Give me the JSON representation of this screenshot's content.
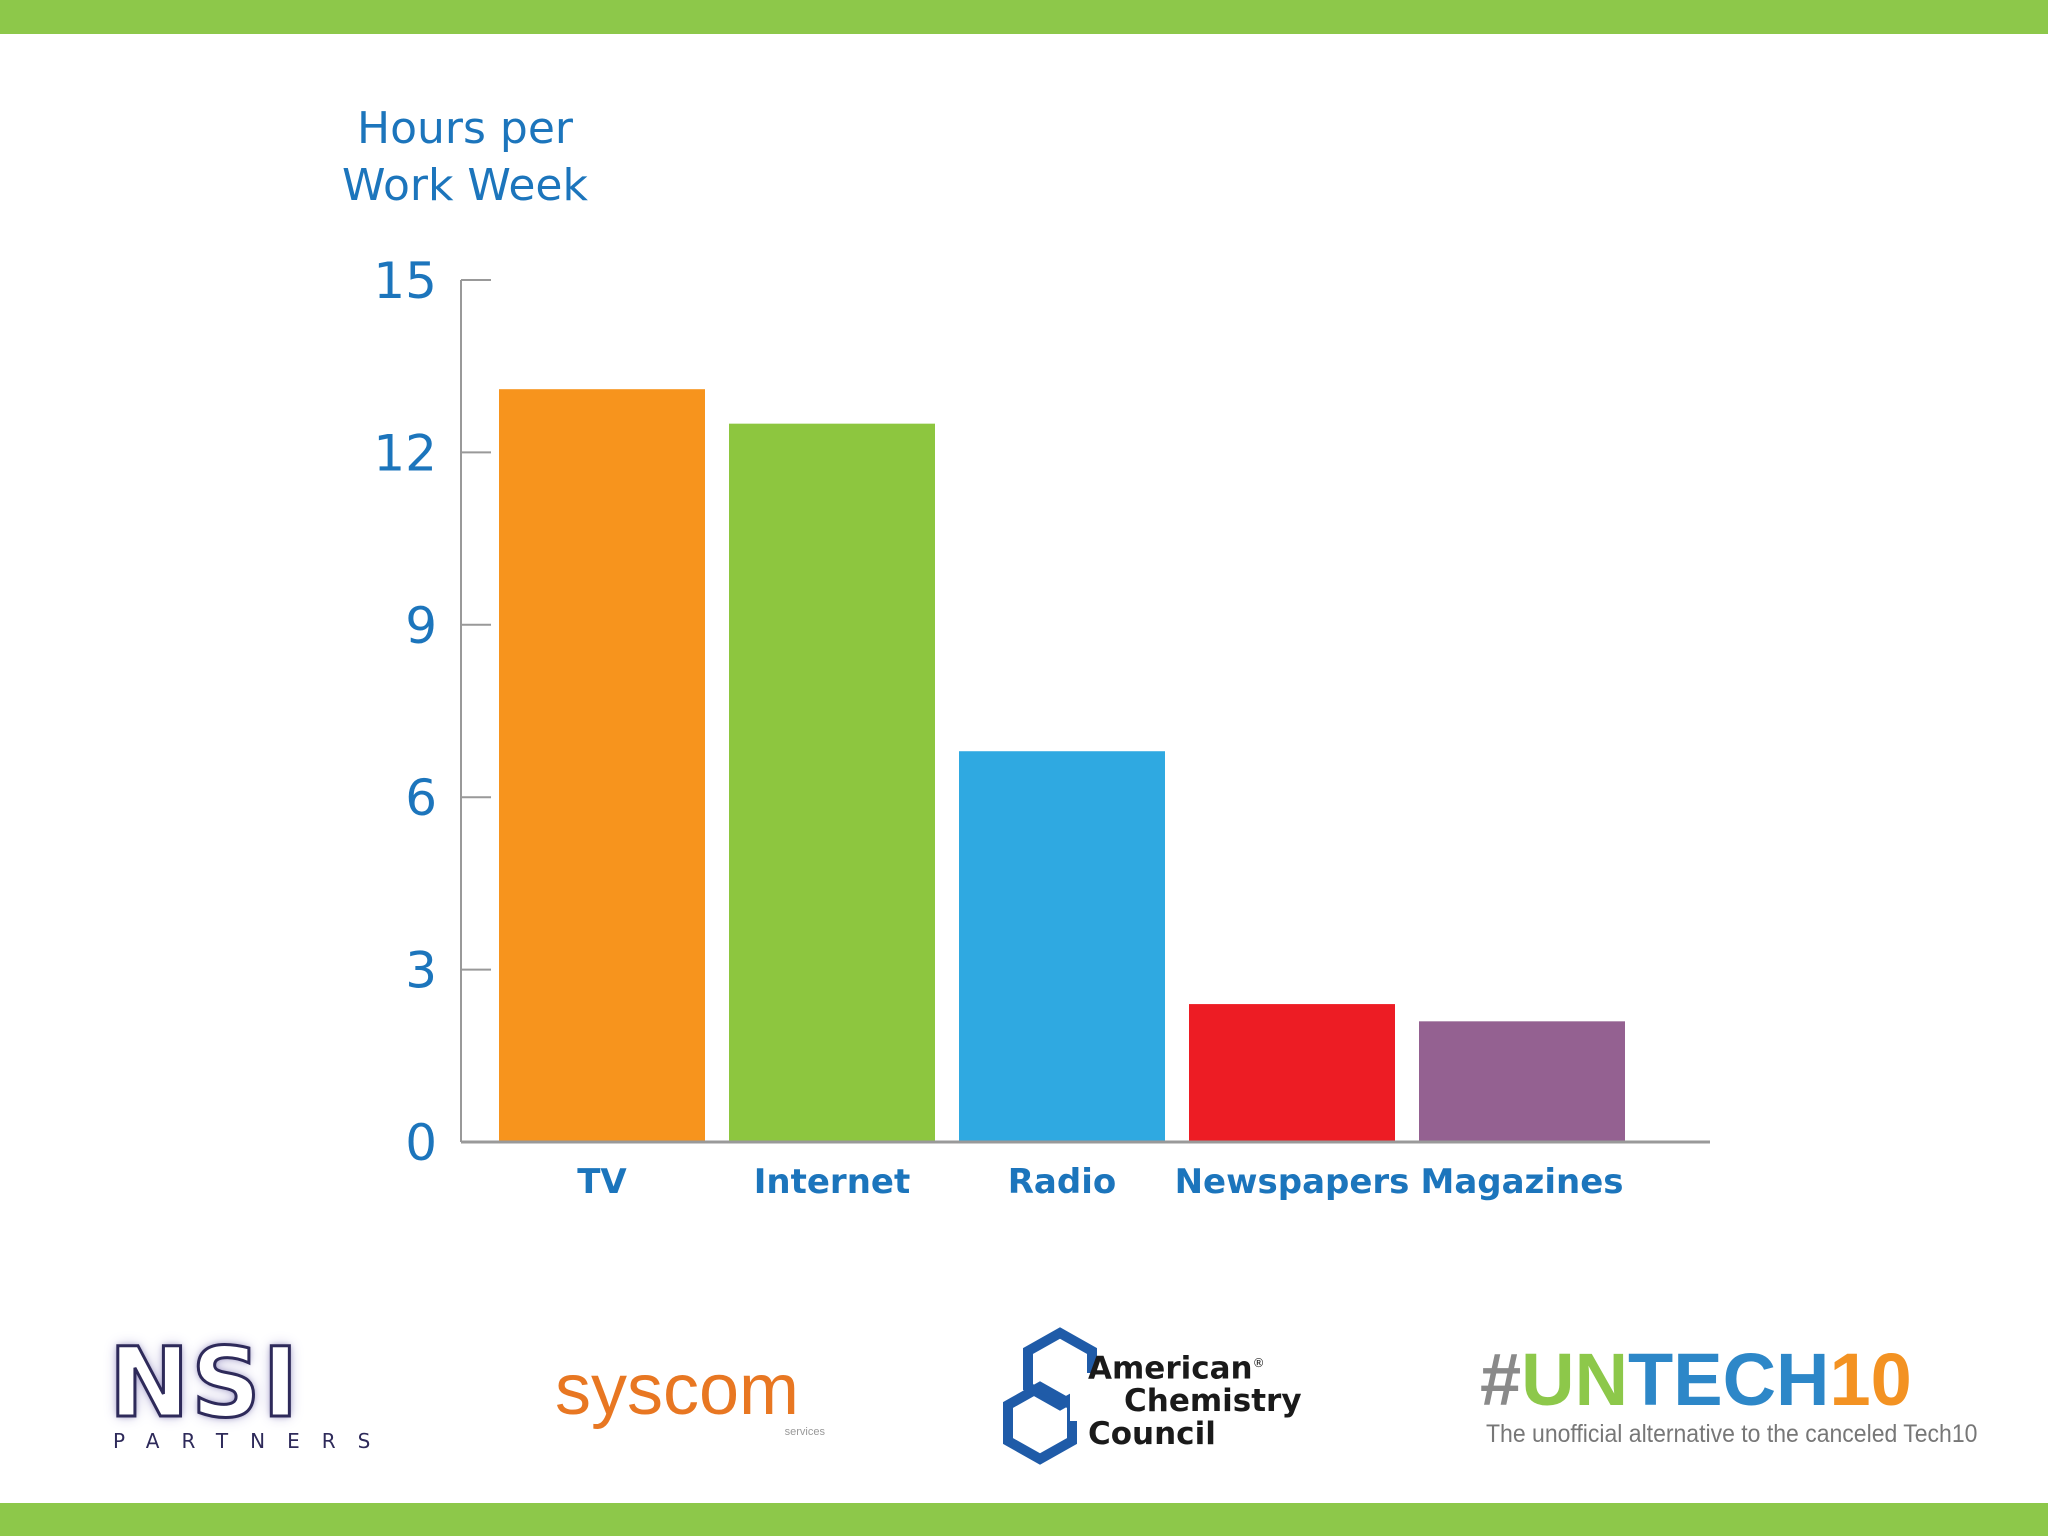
{
  "colors": {
    "band": "#8dc84a",
    "axis_text": "#1c75bc",
    "axis_line": "#999999"
  },
  "chart_data": {
    "type": "bar",
    "title": "",
    "ylabel": "Hours per Work Week",
    "ylabel_lines": [
      "Hours per",
      "Work Week"
    ],
    "xlabel": "",
    "ylim": [
      0,
      15
    ],
    "yticks": [
      0,
      3,
      6,
      9,
      12,
      15
    ],
    "categories": [
      "TV",
      "Internet",
      "Radio",
      "Newspapers",
      "Magazines"
    ],
    "values": [
      13.1,
      12.5,
      6.8,
      2.4,
      2.1
    ],
    "bar_colors": [
      "#f7941d",
      "#8dc63f",
      "#2fa9e1",
      "#ed1c24",
      "#946191"
    ],
    "grid": false
  },
  "logos": {
    "nsi": {
      "name": "NSI",
      "subtitle": "PARTNERS"
    },
    "syscom": {
      "name": "syscom",
      "subtitle": "services"
    },
    "acc": {
      "line1": "American",
      "line2": "Chemistry",
      "line3": "Council",
      "mark": "®"
    },
    "untech": {
      "hash": "#",
      "un": "UN",
      "tech": "TECH",
      "ten": "10",
      "tagline": "The unofficial alternative to the canceled Tech10"
    }
  }
}
